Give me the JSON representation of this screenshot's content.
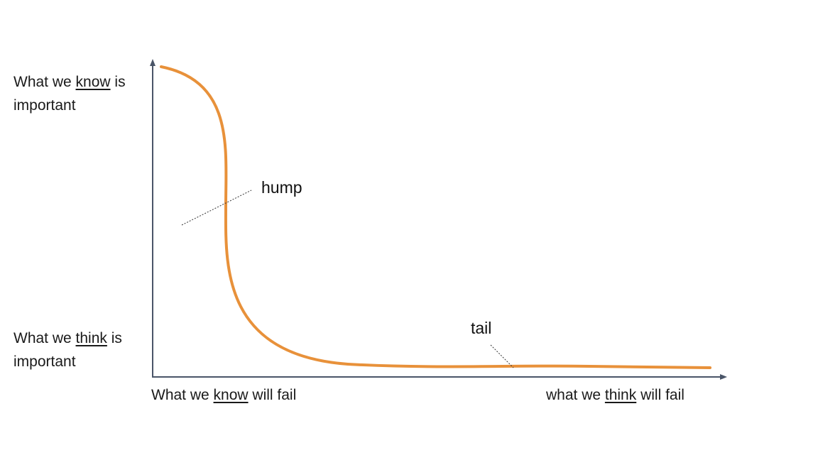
{
  "y_axis": {
    "top_label": {
      "line1_before": "What we ",
      "line1_em": "know",
      "line1_after": " is",
      "line2": "important"
    },
    "bottom_label": {
      "line1_before": "What we ",
      "line1_em": "think",
      "line1_after": " is",
      "line2": "important"
    }
  },
  "x_axis": {
    "left_label": {
      "before": "What we ",
      "em": "know",
      "after": " will fail"
    },
    "right_label": {
      "before": "what we ",
      "em": "think",
      "after": " will fail"
    }
  },
  "annotations": {
    "hump": "hump",
    "tail": "tail"
  },
  "colors": {
    "curve": "#E8913A",
    "axis": "#4A5568",
    "text": "#1a1a1a"
  }
}
